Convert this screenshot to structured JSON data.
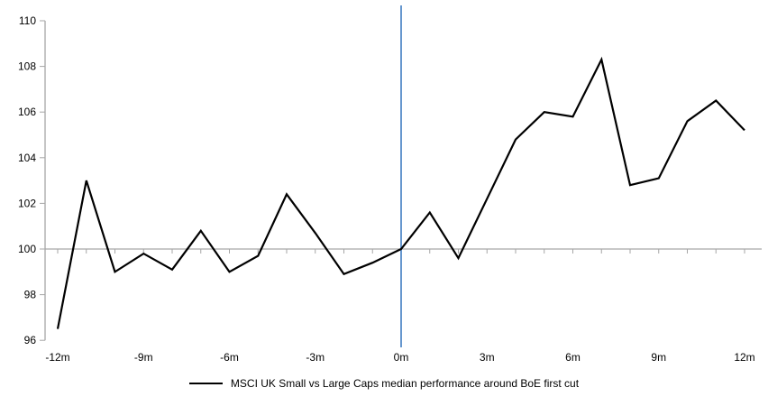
{
  "chart": {
    "colors": {
      "series_line": "#000000",
      "event_line": "#6697CE",
      "axis_line": "#A6A6A6",
      "tick_label": "#000000",
      "background": "#FFFFFF"
    }
  },
  "chart_data": {
    "type": "line",
    "x": [
      -12,
      -11,
      -10,
      -9,
      -8,
      -7,
      -6,
      -5,
      -4,
      -3,
      -2,
      -1,
      0,
      1,
      2,
      3,
      4,
      5,
      6,
      7,
      8,
      9,
      10,
      11,
      12
    ],
    "series": [
      {
        "name": "MSCI UK Small vs Large Caps median performance around BoE first cut",
        "values": [
          96.5,
          103.0,
          99.0,
          99.8,
          99.1,
          100.8,
          99.0,
          99.7,
          102.4,
          100.7,
          98.9,
          99.4,
          100.0,
          101.6,
          99.6,
          102.2,
          104.8,
          106.0,
          105.8,
          108.3,
          102.8,
          103.1,
          105.6,
          106.5,
          105.2
        ]
      }
    ],
    "x_tick_months": [
      -12,
      -9,
      -6,
      -3,
      0,
      3,
      6,
      9,
      12
    ],
    "x_tick_labels": [
      "-12m",
      "-9m",
      "-6m",
      "-3m",
      "0m",
      "3m",
      "6m",
      "9m",
      "12m"
    ],
    "y_ticks": [
      96,
      98,
      100,
      102,
      104,
      106,
      108,
      110
    ],
    "y_tick_labels": [
      "96",
      "98",
      "100",
      "102",
      "104",
      "106",
      "108",
      "110"
    ],
    "ylim": [
      96,
      110
    ],
    "baseline_value": 100,
    "event_x": 0,
    "grid": "baseline-only",
    "legend_position": "bottom-center"
  }
}
